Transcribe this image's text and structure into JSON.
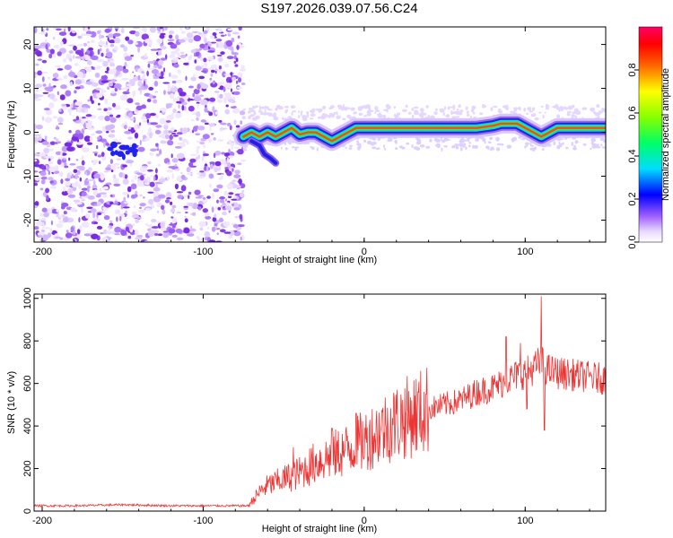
{
  "title": "S197.2026.039.07.56.C24",
  "chart_data": [
    {
      "type": "heatmap",
      "xlabel": "Height of straight line (km)",
      "ylabel": "Frequency (Hz)",
      "xlim": [
        -205,
        150
      ],
      "ylim": [
        -25,
        24
      ],
      "xticks": [
        -200,
        -100,
        0,
        100
      ],
      "yticks": [
        -20,
        -10,
        0,
        10,
        20
      ],
      "colorbar": {
        "label": "Normalized spectral amplitude",
        "range": [
          0,
          1
        ],
        "ticks": [
          0.0,
          0.2,
          0.4,
          0.6,
          0.8
        ]
      },
      "noise_region_x": [
        -205,
        -75
      ],
      "signal_track": {
        "x": [
          -75,
          -70,
          -65,
          -60,
          -55,
          -50,
          -45,
          -40,
          -35,
          -30,
          -25,
          -20,
          -15,
          -10,
          -5,
          0,
          10,
          20,
          30,
          40,
          50,
          60,
          70,
          80,
          85,
          90,
          95,
          100,
          105,
          110,
          115,
          120,
          130,
          140,
          150
        ],
        "freq": [
          -1,
          0,
          -1,
          0,
          -1,
          0,
          1,
          -0.5,
          0,
          0,
          -1,
          -2,
          -1,
          0,
          1,
          1,
          1,
          1,
          1,
          1,
          1,
          1,
          1,
          1.5,
          2,
          2,
          2,
          1,
          0,
          -1,
          0,
          1,
          1,
          1,
          1
        ]
      },
      "branch_track": {
        "x": [
          -70,
          -65,
          -62,
          -58,
          -55
        ],
        "freq": [
          -2,
          -3,
          -5,
          -6,
          -7
        ]
      }
    },
    {
      "type": "line",
      "xlabel": "Height of straight line (km)",
      "ylabel": "SNR (10 * v/v)",
      "xlim": [
        -205,
        150
      ],
      "ylim": [
        0,
        1020
      ],
      "xticks": [
        -200,
        -100,
        0,
        100
      ],
      "yticks": [
        0,
        200,
        400,
        600,
        800,
        1000
      ],
      "series": [
        {
          "name": "SNR",
          "color": "#ee3333",
          "x": [
            -205,
            -180,
            -150,
            -120,
            -100,
            -80,
            -72,
            -65,
            -60,
            -50,
            -40,
            -30,
            -20,
            -10,
            0,
            10,
            20,
            30,
            40,
            50,
            60,
            70,
            80,
            90,
            95,
            100,
            105,
            108,
            110,
            112,
            115,
            120,
            130,
            140,
            150
          ],
          "trend": [
            25,
            25,
            30,
            25,
            25,
            25,
            25,
            90,
            120,
            150,
            180,
            230,
            260,
            290,
            330,
            380,
            420,
            450,
            480,
            500,
            520,
            560,
            580,
            620,
            640,
            650,
            670,
            690,
            700,
            680,
            660,
            650,
            640,
            630,
            620
          ],
          "spikes": [
            {
              "x": 110,
              "y": 1010
            },
            {
              "x": 112,
              "y": 380
            },
            {
              "x": 101,
              "y": 480
            },
            {
              "x": 97,
              "y": 790
            },
            {
              "x": 88,
              "y": 820
            },
            {
              "x": -5,
              "y": 460
            },
            {
              "x": -20,
              "y": 390
            },
            {
              "x": -44,
              "y": 300
            }
          ]
        }
      ]
    }
  ]
}
